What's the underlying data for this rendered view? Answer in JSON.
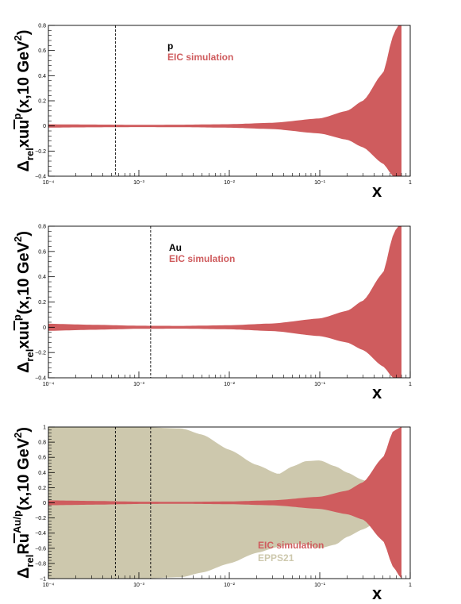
{
  "colors": {
    "eic": "#cf5c5e",
    "epps": "#cdc8ad",
    "axis": "#000000"
  },
  "chart_data": [
    {
      "type": "area",
      "xscale": "log",
      "xlim": [
        0.0001,
        1
      ],
      "ylim": [
        -0.4,
        0.8
      ],
      "xlabel": "x",
      "ylabel": {
        "prefix": "Δ",
        "sub1": "rel",
        "main": "xu",
        "overbar": "u",
        "sup": "p",
        "tail": "(x,10 GeV",
        "tail_sup": "2",
        "close": ")"
      },
      "yticks": [
        -0.4,
        -0.2,
        0,
        0.2,
        0.4,
        0.6,
        0.8
      ],
      "ytick_labels": [
        "−0.4",
        "−0.2",
        "0",
        "0.2",
        "0.4",
        "0.6",
        "0.8"
      ],
      "xticks": [
        0.0001,
        0.001,
        0.01,
        0.1,
        1
      ],
      "xtick_labels": [
        "10⁻⁴",
        "10⁻³",
        "10⁻²",
        "10⁻¹",
        "1"
      ],
      "vlines": [
        0.00055
      ],
      "annotations": [
        {
          "text": "p",
          "color": "#000000"
        },
        {
          "text": "EIC simulation",
          "color": "#cf5c5e"
        }
      ],
      "series": [
        {
          "name": "EIC simulation",
          "x": [
            0.0001,
            0.0003,
            0.001,
            0.003,
            0.01,
            0.03,
            0.1,
            0.2,
            0.3,
            0.5,
            0.65,
            0.8
          ],
          "upper": [
            0.013,
            0.011,
            0.009,
            0.01,
            0.014,
            0.025,
            0.06,
            0.12,
            0.2,
            0.42,
            0.72,
            0.9
          ],
          "lower": [
            -0.013,
            -0.011,
            -0.009,
            -0.01,
            -0.014,
            -0.025,
            -0.06,
            -0.11,
            -0.17,
            -0.3,
            -0.4,
            -0.4
          ]
        }
      ]
    },
    {
      "type": "area",
      "xscale": "log",
      "xlim": [
        0.0001,
        1
      ],
      "ylim": [
        -0.4,
        0.8
      ],
      "xlabel": "x",
      "ylabel": {
        "prefix": "Δ",
        "sub1": "rel",
        "main": "xu",
        "overbar": "u",
        "sup": "p",
        "tail": "(x,10 GeV",
        "tail_sup": "2",
        "close": ")"
      },
      "yticks": [
        -0.4,
        -0.2,
        0,
        0.2,
        0.4,
        0.6,
        0.8
      ],
      "ytick_labels": [
        "−0.4",
        "−0.2",
        "0",
        "0.2",
        "0.4",
        "0.6",
        "0.8"
      ],
      "xticks": [
        0.0001,
        0.001,
        0.01,
        0.1,
        1
      ],
      "xtick_labels": [
        "10⁻⁴",
        "10⁻³",
        "10⁻²",
        "10⁻¹",
        "1"
      ],
      "vlines": [
        0.00135
      ],
      "annotations": [
        {
          "text": "Au",
          "color": "#000000"
        },
        {
          "text": "EIC simulation",
          "color": "#cf5c5e"
        }
      ],
      "series": [
        {
          "name": "EIC simulation",
          "x": [
            0.0001,
            0.0003,
            0.001,
            0.003,
            0.01,
            0.03,
            0.1,
            0.2,
            0.3,
            0.5,
            0.65,
            0.8
          ],
          "upper": [
            0.028,
            0.02,
            0.012,
            0.011,
            0.016,
            0.03,
            0.07,
            0.13,
            0.21,
            0.43,
            0.73,
            0.9
          ],
          "lower": [
            -0.028,
            -0.02,
            -0.012,
            -0.011,
            -0.016,
            -0.03,
            -0.07,
            -0.12,
            -0.18,
            -0.31,
            -0.4,
            -0.4
          ]
        }
      ]
    },
    {
      "type": "area",
      "xscale": "log",
      "xlim": [
        0.0001,
        1
      ],
      "ylim": [
        -1,
        1
      ],
      "xlabel": "x",
      "ylabel": {
        "prefix": "Δ",
        "sub1": "rel",
        "main": "R",
        "overbar": "u",
        "sup": "Au/p",
        "tail": "(x,10 GeV",
        "tail_sup": "2",
        "close": ")"
      },
      "yticks": [
        -1,
        -0.8,
        -0.6,
        -0.4,
        -0.2,
        0,
        0.2,
        0.4,
        0.6,
        0.8,
        1
      ],
      "ytick_labels": [
        "−1",
        "−0.8",
        "−0.6",
        "−0.4",
        "−0.2",
        "0",
        "0.2",
        "0.4",
        "0.6",
        "0.8",
        "1"
      ],
      "xticks": [
        0.0001,
        0.001,
        0.01,
        0.1,
        1
      ],
      "xtick_labels": [
        "10⁻⁴",
        "10⁻³",
        "10⁻²",
        "10⁻¹",
        "1"
      ],
      "vlines": [
        0.00055,
        0.00135
      ],
      "legend": [
        {
          "text": "EIC simulation",
          "color": "#cf5c5e"
        },
        {
          "text": "EPPS21",
          "color": "#cdc8ad"
        }
      ],
      "series": [
        {
          "name": "EPPS21",
          "x": [
            0.0001,
            0.0003,
            0.001,
            0.003,
            0.005,
            0.01,
            0.02,
            0.035,
            0.05,
            0.07,
            0.1,
            0.15,
            0.2,
            0.3,
            0.5
          ],
          "upper": [
            1.0,
            1.0,
            1.0,
            0.98,
            0.9,
            0.7,
            0.5,
            0.38,
            0.48,
            0.55,
            0.56,
            0.48,
            0.4,
            0.3,
            0.2
          ],
          "lower": [
            -1.0,
            -1.0,
            -1.0,
            -0.98,
            -0.92,
            -0.8,
            -0.66,
            -0.58,
            -0.54,
            -0.55,
            -0.6,
            -0.55,
            -0.45,
            -0.35,
            -0.2
          ]
        },
        {
          "name": "EIC simulation",
          "x": [
            0.0001,
            0.0003,
            0.001,
            0.003,
            0.01,
            0.03,
            0.1,
            0.2,
            0.3,
            0.5,
            0.65,
            0.8
          ],
          "upper": [
            0.032,
            0.025,
            0.015,
            0.013,
            0.018,
            0.033,
            0.08,
            0.16,
            0.27,
            0.6,
            0.95,
            1.0
          ],
          "lower": [
            -0.032,
            -0.025,
            -0.015,
            -0.013,
            -0.018,
            -0.033,
            -0.08,
            -0.15,
            -0.22,
            -0.5,
            -0.85,
            -1.0
          ]
        }
      ]
    }
  ]
}
